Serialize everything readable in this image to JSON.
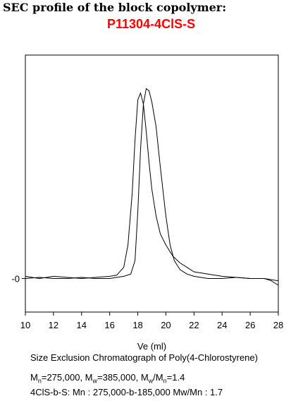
{
  "header": {
    "title": "SEC profile of the block copolymer:",
    "sample_id": "P11304-4ClS-S"
  },
  "chart_data": {
    "type": "line",
    "title": "",
    "xlabel": "Ve (ml)",
    "ylabel": "",
    "xlim": [
      10,
      28
    ],
    "ylim": [
      -0.15,
      1.0
    ],
    "x_ticks": [
      "10",
      "12",
      "14",
      "16",
      "18",
      "20",
      "22",
      "24",
      "26",
      "28"
    ],
    "y_tick_label": "-0",
    "grid": false,
    "series": [
      {
        "points": [
          [
            10.0,
            0.01
          ],
          [
            11.0,
            0.0
          ],
          [
            12.0,
            0.01
          ],
          [
            13.0,
            0.005
          ],
          [
            14.0,
            0.0
          ],
          [
            15.0,
            0.005
          ],
          [
            16.0,
            0.01
          ],
          [
            16.5,
            0.015
          ],
          [
            17.0,
            0.05
          ],
          [
            17.3,
            0.15
          ],
          [
            17.6,
            0.38
          ],
          [
            17.8,
            0.62
          ],
          [
            18.0,
            0.8
          ],
          [
            18.2,
            0.83
          ],
          [
            18.4,
            0.78
          ],
          [
            18.6,
            0.66
          ],
          [
            18.8,
            0.52
          ],
          [
            19.0,
            0.4
          ],
          [
            19.3,
            0.28
          ],
          [
            19.6,
            0.2
          ],
          [
            20.0,
            0.15
          ],
          [
            20.5,
            0.1
          ],
          [
            21.0,
            0.07
          ],
          [
            21.5,
            0.05
          ],
          [
            22.0,
            0.03
          ],
          [
            23.0,
            0.02
          ],
          [
            24.0,
            0.01
          ],
          [
            25.0,
            0.005
          ],
          [
            26.0,
            0.0
          ],
          [
            27.0,
            0.0
          ],
          [
            27.5,
            -0.01
          ],
          [
            28.0,
            -0.03
          ]
        ]
      },
      {
        "points": [
          [
            10.0,
            0.0
          ],
          [
            11.0,
            0.005
          ],
          [
            12.0,
            0.0
          ],
          [
            13.0,
            0.0
          ],
          [
            14.0,
            0.005
          ],
          [
            15.0,
            0.0
          ],
          [
            16.0,
            0.0
          ],
          [
            16.5,
            0.005
          ],
          [
            17.0,
            0.01
          ],
          [
            17.5,
            0.02
          ],
          [
            17.8,
            0.08
          ],
          [
            18.0,
            0.3
          ],
          [
            18.2,
            0.58
          ],
          [
            18.4,
            0.78
          ],
          [
            18.6,
            0.85
          ],
          [
            18.8,
            0.84
          ],
          [
            19.0,
            0.79
          ],
          [
            19.3,
            0.68
          ],
          [
            19.6,
            0.5
          ],
          [
            20.0,
            0.28
          ],
          [
            20.3,
            0.15
          ],
          [
            20.6,
            0.08
          ],
          [
            21.0,
            0.04
          ],
          [
            21.5,
            0.02
          ],
          [
            22.0,
            0.01
          ],
          [
            23.0,
            0.0
          ],
          [
            24.0,
            0.0
          ],
          [
            25.0,
            0.005
          ],
          [
            26.0,
            0.0
          ],
          [
            27.0,
            0.0
          ],
          [
            28.0,
            -0.01
          ]
        ]
      }
    ]
  },
  "caption": "Size Exclusion Chromatograph of Poly(4-Chlorostyrene)",
  "stats": {
    "mn_label": "M",
    "mn_sub": "n",
    "mn_value": "=275,000, ",
    "mw_label": "M",
    "mw_sub": "w",
    "mw_value": "=385,000, ",
    "pdi_label": "M",
    "pdi_sub": "w",
    "pdi_slash": "/M",
    "pdi_sub2": "n",
    "pdi_value": "=1.4",
    "line2": "4ClS-b-S:  Mn : 275,000-b-185,000 Mw/Mn : 1.7"
  }
}
